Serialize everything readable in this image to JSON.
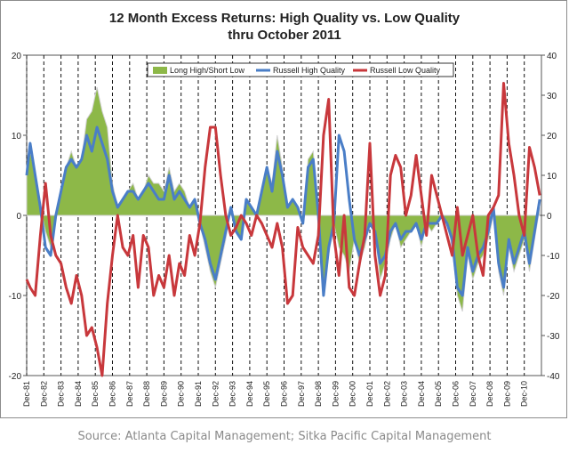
{
  "chart_data": {
    "type": "line",
    "title": "12 Month Excess Returns: High Quality vs. Low Quality",
    "subtitle": "thru October 2011",
    "source": "Source: Atlanta Capital Management; Sitka Pacific Capital Management",
    "left_axis": {
      "ylim": [
        -20,
        20
      ],
      "ticks": [
        "20",
        "10",
        "0",
        "-10",
        "-20"
      ]
    },
    "right_axis": {
      "ylim": [
        -40,
        40
      ],
      "ticks": [
        "40",
        "30",
        "20",
        "10",
        "0",
        "-10",
        "-20",
        "-30",
        "-40"
      ]
    },
    "grid": "vertical dashed at December of each year",
    "legend_position": "top-center",
    "x_tick_labels": [
      "Dec-81",
      "Dec-82",
      "Dec-83",
      "Dec-84",
      "Dec-85",
      "Dec-86",
      "Dec-87",
      "Dec-88",
      "Dec-89",
      "Dec-90",
      "Dec-91",
      "Dec-92",
      "Dec-93",
      "Dec-94",
      "Dec-95",
      "Dec-96",
      "Dec-97",
      "Dec-98",
      "Dec-99",
      "Dec-00",
      "Dec-01",
      "Dec-02",
      "Dec-03",
      "Dec-04",
      "Dec-05",
      "Dec-06",
      "Dec-07",
      "Dec-08",
      "Dec-09",
      "Dec-10"
    ],
    "x": [
      1981.9,
      1982.1,
      1982.4,
      1982.7,
      1983.0,
      1983.3,
      1983.6,
      1983.9,
      1984.2,
      1984.5,
      1984.8,
      1985.1,
      1985.4,
      1985.7,
      1986.0,
      1986.3,
      1986.6,
      1986.9,
      1987.2,
      1987.5,
      1987.8,
      1988.1,
      1988.4,
      1988.7,
      1989.0,
      1989.3,
      1989.6,
      1989.9,
      1990.2,
      1990.5,
      1990.8,
      1991.1,
      1991.4,
      1991.7,
      1992.0,
      1992.3,
      1992.6,
      1992.9,
      1993.2,
      1993.5,
      1993.8,
      1994.1,
      1994.4,
      1994.7,
      1995.0,
      1995.3,
      1995.6,
      1995.9,
      1996.2,
      1996.5,
      1996.8,
      1997.1,
      1997.4,
      1997.7,
      1998.0,
      1998.3,
      1998.6,
      1998.9,
      1999.2,
      1999.5,
      1999.8,
      2000.1,
      2000.4,
      2000.7,
      2001.0,
      2001.3,
      2001.6,
      2001.9,
      2002.2,
      2002.5,
      2002.8,
      2003.1,
      2003.4,
      2003.7,
      2004.0,
      2004.3,
      2004.6,
      2004.9,
      2005.2,
      2005.5,
      2005.8,
      2006.1,
      2006.4,
      2006.7,
      2007.0,
      2007.3,
      2007.6,
      2007.9,
      2008.2,
      2008.5,
      2008.8,
      2009.1,
      2009.4,
      2009.7,
      2010.0,
      2010.3,
      2010.6,
      2010.9,
      2011.2,
      2011.5,
      2011.8
    ],
    "series": [
      {
        "name": "Long High/Short Low",
        "axis": "left",
        "style": "area",
        "color": "#8db848",
        "values": [
          6,
          8,
          5,
          1,
          -2,
          -4,
          0,
          3,
          6,
          8,
          6,
          7,
          12,
          13,
          16,
          13,
          11,
          4,
          1,
          2,
          3,
          4,
          2,
          3,
          5,
          4,
          4,
          3,
          6,
          3,
          4,
          3,
          1,
          2,
          -1,
          -4,
          -7,
          -9,
          -6,
          -3,
          1,
          -2,
          -3,
          2,
          1,
          0,
          3,
          6,
          4,
          10,
          6,
          1,
          2,
          1,
          -1,
          7,
          8,
          0,
          -10,
          -5,
          -1,
          -4,
          -5,
          -7,
          -3,
          -6,
          -4,
          -1,
          -2,
          -8,
          -6,
          -3,
          -1,
          -4,
          -3,
          -2,
          -1,
          -4,
          -1,
          -2,
          -1,
          0,
          -1,
          -4,
          -10,
          -12,
          -5,
          -8,
          -6,
          -5,
          -3,
          0,
          -7,
          -10,
          -4,
          -7,
          -5,
          -3,
          -7,
          -3,
          1
        ]
      },
      {
        "name": "Russell High Quality",
        "axis": "left",
        "style": "line",
        "color": "#4a7ec7",
        "values": [
          5,
          9,
          5,
          1,
          -4,
          -5,
          0,
          3,
          6,
          7,
          6,
          7,
          10,
          8,
          11,
          9,
          7,
          3,
          1,
          2,
          3,
          3,
          2,
          3,
          4,
          3,
          2,
          2,
          5,
          2,
          3,
          2,
          1,
          2,
          -1,
          -3,
          -6,
          -8,
          -5,
          -2,
          1,
          -2,
          -3,
          2,
          1,
          0,
          3,
          6,
          3,
          8,
          5,
          1,
          2,
          1,
          -1,
          6,
          7,
          0,
          -10,
          -4,
          -1,
          10,
          8,
          2,
          -3,
          -5,
          -3,
          -1,
          -2,
          -6,
          -5,
          -2,
          -1,
          -3,
          -2,
          -2,
          -1,
          -3,
          -1,
          -1,
          -1,
          0,
          -1,
          -3,
          -9,
          -10,
          -4,
          -7,
          -5,
          -4,
          -2,
          1,
          -6,
          -9,
          -3,
          -6,
          -4,
          -2,
          -6,
          -2,
          2
        ]
      },
      {
        "name": "Russell Low Quality",
        "axis": "right",
        "style": "line",
        "color": "#c8383c",
        "values": [
          -16,
          -18,
          -20,
          -5,
          8,
          -5,
          -10,
          -12,
          -18,
          -22,
          -15,
          -20,
          -30,
          -28,
          -33,
          -40,
          -22,
          -10,
          0,
          -8,
          -10,
          -5,
          -18,
          -5,
          -8,
          -20,
          -15,
          -18,
          -10,
          -20,
          -12,
          -15,
          -5,
          -10,
          -2,
          12,
          22,
          22,
          10,
          0,
          -5,
          -3,
          0,
          -2,
          -5,
          0,
          -2,
          -5,
          -8,
          -2,
          -8,
          -22,
          -20,
          -3,
          -8,
          -10,
          -12,
          -5,
          20,
          29,
          -5,
          -15,
          0,
          -18,
          -20,
          -12,
          -5,
          18,
          -10,
          -20,
          -15,
          10,
          15,
          12,
          0,
          5,
          15,
          5,
          -5,
          10,
          5,
          0,
          -5,
          -10,
          2,
          -10,
          -5,
          0,
          -10,
          -15,
          0,
          2,
          5,
          33,
          18,
          10,
          0,
          -5,
          17,
          12,
          5
        ]
      }
    ]
  }
}
